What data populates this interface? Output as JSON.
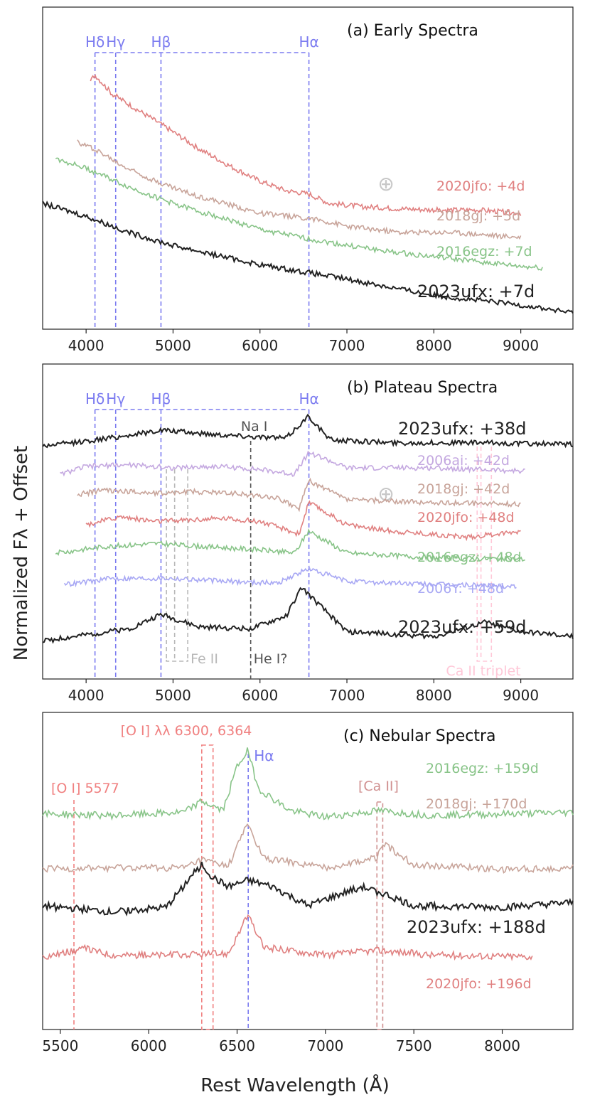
{
  "ylabel": "Normalized F$_\\lambda$ + Offset",
  "ylabel_text": "Normalized Fλ + Offset",
  "xlabel": "Rest Wavelength (Å)",
  "colors": {
    "2023ufx": "#222222",
    "2020jfo": "#e08080",
    "2018gj": "#c8a49a",
    "2016egz": "#88c488",
    "2006ai": "#c4a8e0",
    "2006Y": "#a8a8f4",
    "hydrogen": "#7b7bf0",
    "feii": "#b8b8b8",
    "nai": "#555555",
    "caii_triplet": "#ffc8d8",
    "oi": "#f08080",
    "caii": "#d09090",
    "earth": "#c8c8c8"
  },
  "chart_data": [
    {
      "panel": "a",
      "type": "line",
      "title": "(a) Early Spectra",
      "xlim": [
        3500,
        9600
      ],
      "ylim": [
        0,
        10
      ],
      "xticks": [
        "4000",
        "5000",
        "6000",
        "7000",
        "8000",
        "9000"
      ],
      "xtick_values": [
        4000,
        5000,
        6000,
        7000,
        8000,
        9000
      ],
      "line_markers": [
        {
          "label": "Hδ",
          "x": 4102,
          "color": "hydrogen"
        },
        {
          "label": "Hγ",
          "x": 4340,
          "color": "hydrogen"
        },
        {
          "label": "Hβ",
          "x": 4861,
          "color": "hydrogen"
        },
        {
          "label": "Hα",
          "x": 6563,
          "color": "hydrogen"
        }
      ],
      "telluric_symbol": "⊕",
      "telluric_x": 7450,
      "series": [
        {
          "name": "2020jfo",
          "label": "2020jfo: +4d",
          "color": "2020jfo",
          "xrange": [
            4050,
            9000
          ],
          "points": [
            [
              4050,
              7.7
            ],
            [
              4100,
              7.9
            ],
            [
              4300,
              7.3
            ],
            [
              4600,
              6.8
            ],
            [
              4900,
              6.3
            ],
            [
              5300,
              5.6
            ],
            [
              5700,
              5.0
            ],
            [
              6000,
              4.6
            ],
            [
              6300,
              4.3
            ],
            [
              6560,
              4.2
            ],
            [
              6800,
              3.9
            ],
            [
              7200,
              3.8
            ],
            [
              7500,
              3.75
            ],
            [
              8000,
              3.7
            ],
            [
              8500,
              3.7
            ],
            [
              9000,
              3.6
            ]
          ]
        },
        {
          "name": "2018gj",
          "label": "2018gj: +5d",
          "color": "2018gj",
          "xrange": [
            3900,
            9000
          ],
          "points": [
            [
              3900,
              5.8
            ],
            [
              4100,
              5.6
            ],
            [
              4400,
              5.1
            ],
            [
              4800,
              4.6
            ],
            [
              5200,
              4.2
            ],
            [
              5600,
              3.9
            ],
            [
              6000,
              3.6
            ],
            [
              6560,
              3.45
            ],
            [
              7000,
              3.2
            ],
            [
              7600,
              3.0
            ],
            [
              8200,
              3.0
            ],
            [
              9000,
              2.85
            ]
          ]
        },
        {
          "name": "2016egz",
          "label": "2016egz: +7d",
          "color": "2016egz",
          "xrange": [
            3650,
            9250
          ],
          "points": [
            [
              3650,
              5.3
            ],
            [
              4000,
              5.0
            ],
            [
              4500,
              4.4
            ],
            [
              5000,
              3.9
            ],
            [
              5500,
              3.5
            ],
            [
              6000,
              3.1
            ],
            [
              6560,
              2.8
            ],
            [
              7000,
              2.6
            ],
            [
              7500,
              2.4
            ],
            [
              8000,
              2.25
            ],
            [
              8500,
              2.1
            ],
            [
              9000,
              1.95
            ],
            [
              9250,
              1.9
            ]
          ]
        },
        {
          "name": "2023ufx",
          "label": "2023ufx: +7d",
          "color": "2023ufx",
          "xrange": [
            3500,
            9600
          ],
          "points": [
            [
              3500,
              3.9
            ],
            [
              4000,
              3.5
            ],
            [
              4500,
              3.0
            ],
            [
              5000,
              2.6
            ],
            [
              5500,
              2.3
            ],
            [
              6000,
              2.0
            ],
            [
              6560,
              1.75
            ],
            [
              7000,
              1.55
            ],
            [
              7500,
              1.3
            ],
            [
              8000,
              1.05
            ],
            [
              8500,
              0.9
            ],
            [
              9000,
              0.75
            ],
            [
              9600,
              0.5
            ]
          ]
        }
      ]
    },
    {
      "panel": "b",
      "type": "line",
      "title": "(b) Plateau Spectra",
      "xlim": [
        3500,
        9600
      ],
      "ylim": [
        0,
        10
      ],
      "xticks": [
        "4000",
        "5000",
        "6000",
        "7000",
        "8000",
        "9000"
      ],
      "xtick_values": [
        4000,
        5000,
        6000,
        7000,
        8000,
        9000
      ],
      "line_markers": [
        {
          "label": "Hδ",
          "x": 4102,
          "color": "hydrogen"
        },
        {
          "label": "Hγ",
          "x": 4340,
          "color": "hydrogen"
        },
        {
          "label": "Hβ",
          "x": 4861,
          "color": "hydrogen"
        },
        {
          "label": "Hα",
          "x": 6563,
          "color": "hydrogen"
        },
        {
          "label": "Na I",
          "x": 5893,
          "color": "nai"
        },
        {
          "label": "Fe II",
          "x": 5018,
          "color": "feii"
        },
        {
          "label": "He I?",
          "x": 5876,
          "color": "nai"
        },
        {
          "label": "Ca II triplet",
          "x": 8600,
          "color": "caii_triplet"
        }
      ],
      "telluric_symbol": "⊕",
      "telluric_x": 7450,
      "series": [
        {
          "name": "2023ufx",
          "label": "2023ufx: +38d",
          "color": "2023ufx",
          "xrange": [
            3500,
            9600
          ],
          "points": [
            [
              3500,
              7.4
            ],
            [
              4000,
              7.55
            ],
            [
              4400,
              7.7
            ],
            [
              4861,
              7.9
            ],
            [
              5300,
              7.8
            ],
            [
              5900,
              7.7
            ],
            [
              6300,
              7.65
            ],
            [
              6560,
              8.35
            ],
            [
              6800,
              7.6
            ],
            [
              7500,
              7.5
            ],
            [
              8500,
              7.5
            ],
            [
              9600,
              7.45
            ]
          ]
        },
        {
          "name": "2006ai",
          "label": "2006ai: +42d",
          "color": "2006ai",
          "xrange": [
            3700,
            9050
          ],
          "points": [
            [
              3700,
              6.5
            ],
            [
              4000,
              6.75
            ],
            [
              4500,
              6.8
            ],
            [
              5000,
              6.7
            ],
            [
              5500,
              6.75
            ],
            [
              6000,
              6.65
            ],
            [
              6400,
              6.5
            ],
            [
              6560,
              7.2
            ],
            [
              7000,
              6.7
            ],
            [
              8000,
              6.7
            ],
            [
              9050,
              6.6
            ]
          ]
        },
        {
          "name": "2018gj",
          "label": "2018gj: +42d",
          "color": "2018gj",
          "xrange": [
            3900,
            9000
          ],
          "points": [
            [
              3900,
              5.85
            ],
            [
              4200,
              6.0
            ],
            [
              4800,
              5.9
            ],
            [
              5200,
              5.95
            ],
            [
              5700,
              5.9
            ],
            [
              6200,
              5.75
            ],
            [
              6450,
              5.4
            ],
            [
              6560,
              6.3
            ],
            [
              7000,
              5.7
            ],
            [
              8000,
              5.6
            ],
            [
              9000,
              5.55
            ]
          ]
        },
        {
          "name": "2020jfo",
          "label": "2020jfo: +48d",
          "color": "2020jfo",
          "xrange": [
            4000,
            9000
          ],
          "points": [
            [
              4000,
              4.9
            ],
            [
              4400,
              5.15
            ],
            [
              4800,
              5.0
            ],
            [
              5200,
              5.05
            ],
            [
              5600,
              5.1
            ],
            [
              6000,
              5.0
            ],
            [
              6450,
              4.6
            ],
            [
              6560,
              5.6
            ],
            [
              7000,
              4.9
            ],
            [
              7500,
              4.7
            ],
            [
              8400,
              4.5
            ],
            [
              9000,
              4.7
            ]
          ]
        },
        {
          "name": "2016egz",
          "label": "2016egz: +48d",
          "color": "2016egz",
          "xrange": [
            3650,
            9050
          ],
          "points": [
            [
              3650,
              4.0
            ],
            [
              4200,
              4.2
            ],
            [
              4800,
              4.3
            ],
            [
              5400,
              4.2
            ],
            [
              6000,
              4.1
            ],
            [
              6400,
              4.0
            ],
            [
              6560,
              4.7
            ],
            [
              7000,
              4.0
            ],
            [
              8000,
              3.85
            ],
            [
              9050,
              3.8
            ]
          ]
        },
        {
          "name": "2006Y",
          "label": "2006Y: +48d",
          "color": "2006Y",
          "xrange": [
            3750,
            8950
          ],
          "points": [
            [
              3750,
              3.0
            ],
            [
              4300,
              3.2
            ],
            [
              5000,
              3.2
            ],
            [
              5600,
              3.1
            ],
            [
              6200,
              3.05
            ],
            [
              6560,
              3.5
            ],
            [
              7000,
              3.1
            ],
            [
              8000,
              3.0
            ],
            [
              8950,
              2.95
            ]
          ]
        },
        {
          "name": "2023ufx",
          "label": "2023ufx: +59d",
          "color": "2023ufx",
          "xrange": [
            3500,
            9600
          ],
          "points": [
            [
              3500,
              1.2
            ],
            [
              4000,
              1.4
            ],
            [
              4500,
              1.6
            ],
            [
              4861,
              2.05
            ],
            [
              5300,
              1.65
            ],
            [
              5900,
              1.6
            ],
            [
              6300,
              2.0
            ],
            [
              6480,
              2.9
            ],
            [
              6700,
              2.3
            ],
            [
              7000,
              1.5
            ],
            [
              8000,
              1.35
            ],
            [
              8600,
              1.8
            ],
            [
              9000,
              1.5
            ],
            [
              9600,
              1.35
            ]
          ]
        }
      ]
    },
    {
      "panel": "c",
      "type": "line",
      "title": "(c) Nebular Spectra",
      "xlim": [
        5400,
        8400
      ],
      "ylim": [
        0,
        10
      ],
      "xticks": [
        "5500",
        "6000",
        "6500",
        "7000",
        "7500",
        "8000"
      ],
      "xtick_values": [
        5500,
        6000,
        6500,
        7000,
        7500,
        8000
      ],
      "line_markers": [
        {
          "label": "[O I] 5577",
          "x": 5577,
          "color": "oi"
        },
        {
          "label": "[O I] λλ 6300, 6364",
          "x": 6330,
          "color": "oi"
        },
        {
          "label": "Hα",
          "x": 6563,
          "color": "hydrogen"
        },
        {
          "label": "[Ca II]",
          "x": 7307,
          "color": "caii"
        }
      ],
      "series": [
        {
          "name": "2016egz",
          "label": "2016egz: +159d",
          "color": "2016egz",
          "xrange": [
            5400,
            8400
          ],
          "points": [
            [
              5400,
              6.8
            ],
            [
              5800,
              6.75
            ],
            [
              6200,
              6.85
            ],
            [
              6300,
              7.2
            ],
            [
              6420,
              6.9
            ],
            [
              6500,
              8.3
            ],
            [
              6560,
              8.8
            ],
            [
              6620,
              7.6
            ],
            [
              6800,
              6.9
            ],
            [
              7000,
              6.7
            ],
            [
              7300,
              6.9
            ],
            [
              7600,
              6.75
            ],
            [
              8000,
              6.8
            ],
            [
              8400,
              6.85
            ]
          ]
        },
        {
          "name": "2018gj",
          "label": "2018gj: +170d",
          "color": "2018gj",
          "xrange": [
            5400,
            8400
          ],
          "points": [
            [
              5400,
              5.05
            ],
            [
              5800,
              5.1
            ],
            [
              6200,
              5.1
            ],
            [
              6300,
              5.35
            ],
            [
              6450,
              5.15
            ],
            [
              6560,
              6.5
            ],
            [
              6650,
              5.4
            ],
            [
              7000,
              5.1
            ],
            [
              7290,
              5.4
            ],
            [
              7320,
              5.9
            ],
            [
              7500,
              5.2
            ],
            [
              8000,
              5.05
            ],
            [
              8400,
              5.1
            ]
          ]
        },
        {
          "name": "2023ufx",
          "label": "2023ufx: +188d",
          "color": "2023ufx",
          "xrange": [
            5400,
            8400
          ],
          "points": [
            [
              5400,
              3.9
            ],
            [
              5800,
              3.7
            ],
            [
              6100,
              3.85
            ],
            [
              6250,
              4.9
            ],
            [
              6300,
              5.2
            ],
            [
              6360,
              4.8
            ],
            [
              6450,
              4.5
            ],
            [
              6560,
              4.7
            ],
            [
              6700,
              4.5
            ],
            [
              6900,
              3.9
            ],
            [
              7200,
              4.5
            ],
            [
              7320,
              4.3
            ],
            [
              7500,
              3.9
            ],
            [
              8000,
              3.85
            ],
            [
              8400,
              4.0
            ]
          ]
        },
        {
          "name": "2020jfo",
          "label": "2020jfo: +196d",
          "color": "2020jfo",
          "xrange": [
            5400,
            8170
          ],
          "points": [
            [
              5400,
              2.3
            ],
            [
              5640,
              2.55
            ],
            [
              5800,
              2.35
            ],
            [
              6200,
              2.35
            ],
            [
              6450,
              2.4
            ],
            [
              6560,
              3.6
            ],
            [
              6650,
              2.6
            ],
            [
              7000,
              2.35
            ],
            [
              7300,
              2.5
            ],
            [
              7600,
              2.35
            ],
            [
              8170,
              2.3
            ]
          ]
        }
      ]
    }
  ]
}
